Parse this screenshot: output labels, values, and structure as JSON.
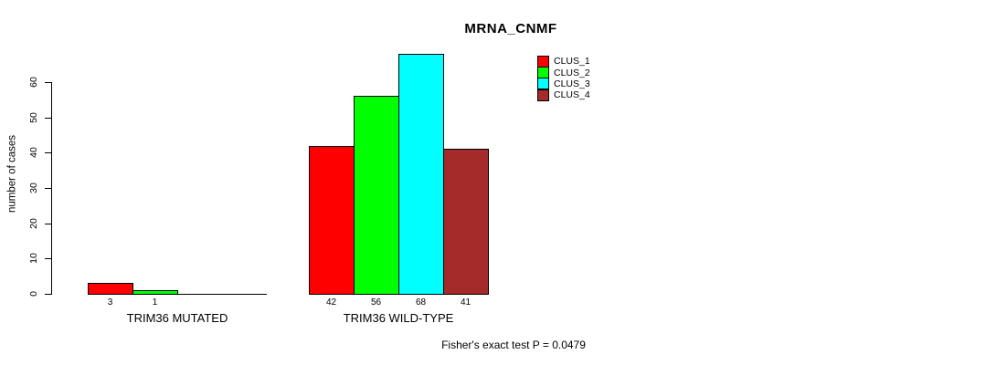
{
  "title": "MRNA_CNMF",
  "footer": "Fisher's exact test P = 0.0479",
  "y_axis": {
    "label": "number of cases",
    "ticks": [
      0,
      10,
      20,
      30,
      40,
      50,
      60
    ]
  },
  "legend": {
    "items": [
      {
        "label": "CLUS_1",
        "color": "#FF0000"
      },
      {
        "label": "CLUS_2",
        "color": "#00FF00"
      },
      {
        "label": "CLUS_3",
        "color": "#00FFFF"
      },
      {
        "label": "CLUS_4",
        "color": "#A52A2A"
      }
    ]
  },
  "chart_data": {
    "type": "bar",
    "title": "MRNA_CNMF",
    "xlabel": "",
    "ylabel": "number of cases",
    "ylim": [
      0,
      68
    ],
    "y_ticks": [
      0,
      10,
      20,
      30,
      40,
      50,
      60
    ],
    "categories": [
      "TRIM36 MUTATED",
      "TRIM36 WILD-TYPE"
    ],
    "series": [
      {
        "name": "CLUS_1",
        "color": "#FF0000",
        "values": [
          3,
          42
        ]
      },
      {
        "name": "CLUS_2",
        "color": "#00FF00",
        "values": [
          1,
          56
        ]
      },
      {
        "name": "CLUS_3",
        "color": "#00FFFF",
        "values": [
          0,
          68
        ]
      },
      {
        "name": "CLUS_4",
        "color": "#A52A2A",
        "values": [
          0,
          41
        ]
      }
    ],
    "bar_value_labels": {
      "TRIM36 MUTATED": [
        3,
        1,
        0,
        0
      ],
      "TRIM36 WILD-TYPE": [
        42,
        56,
        68,
        41
      ]
    },
    "annotation": "Fisher's exact test P = 0.0479",
    "legend_position": "top-right",
    "grid": false,
    "background": "#ffffff",
    "bar_border_color": "#000000"
  }
}
